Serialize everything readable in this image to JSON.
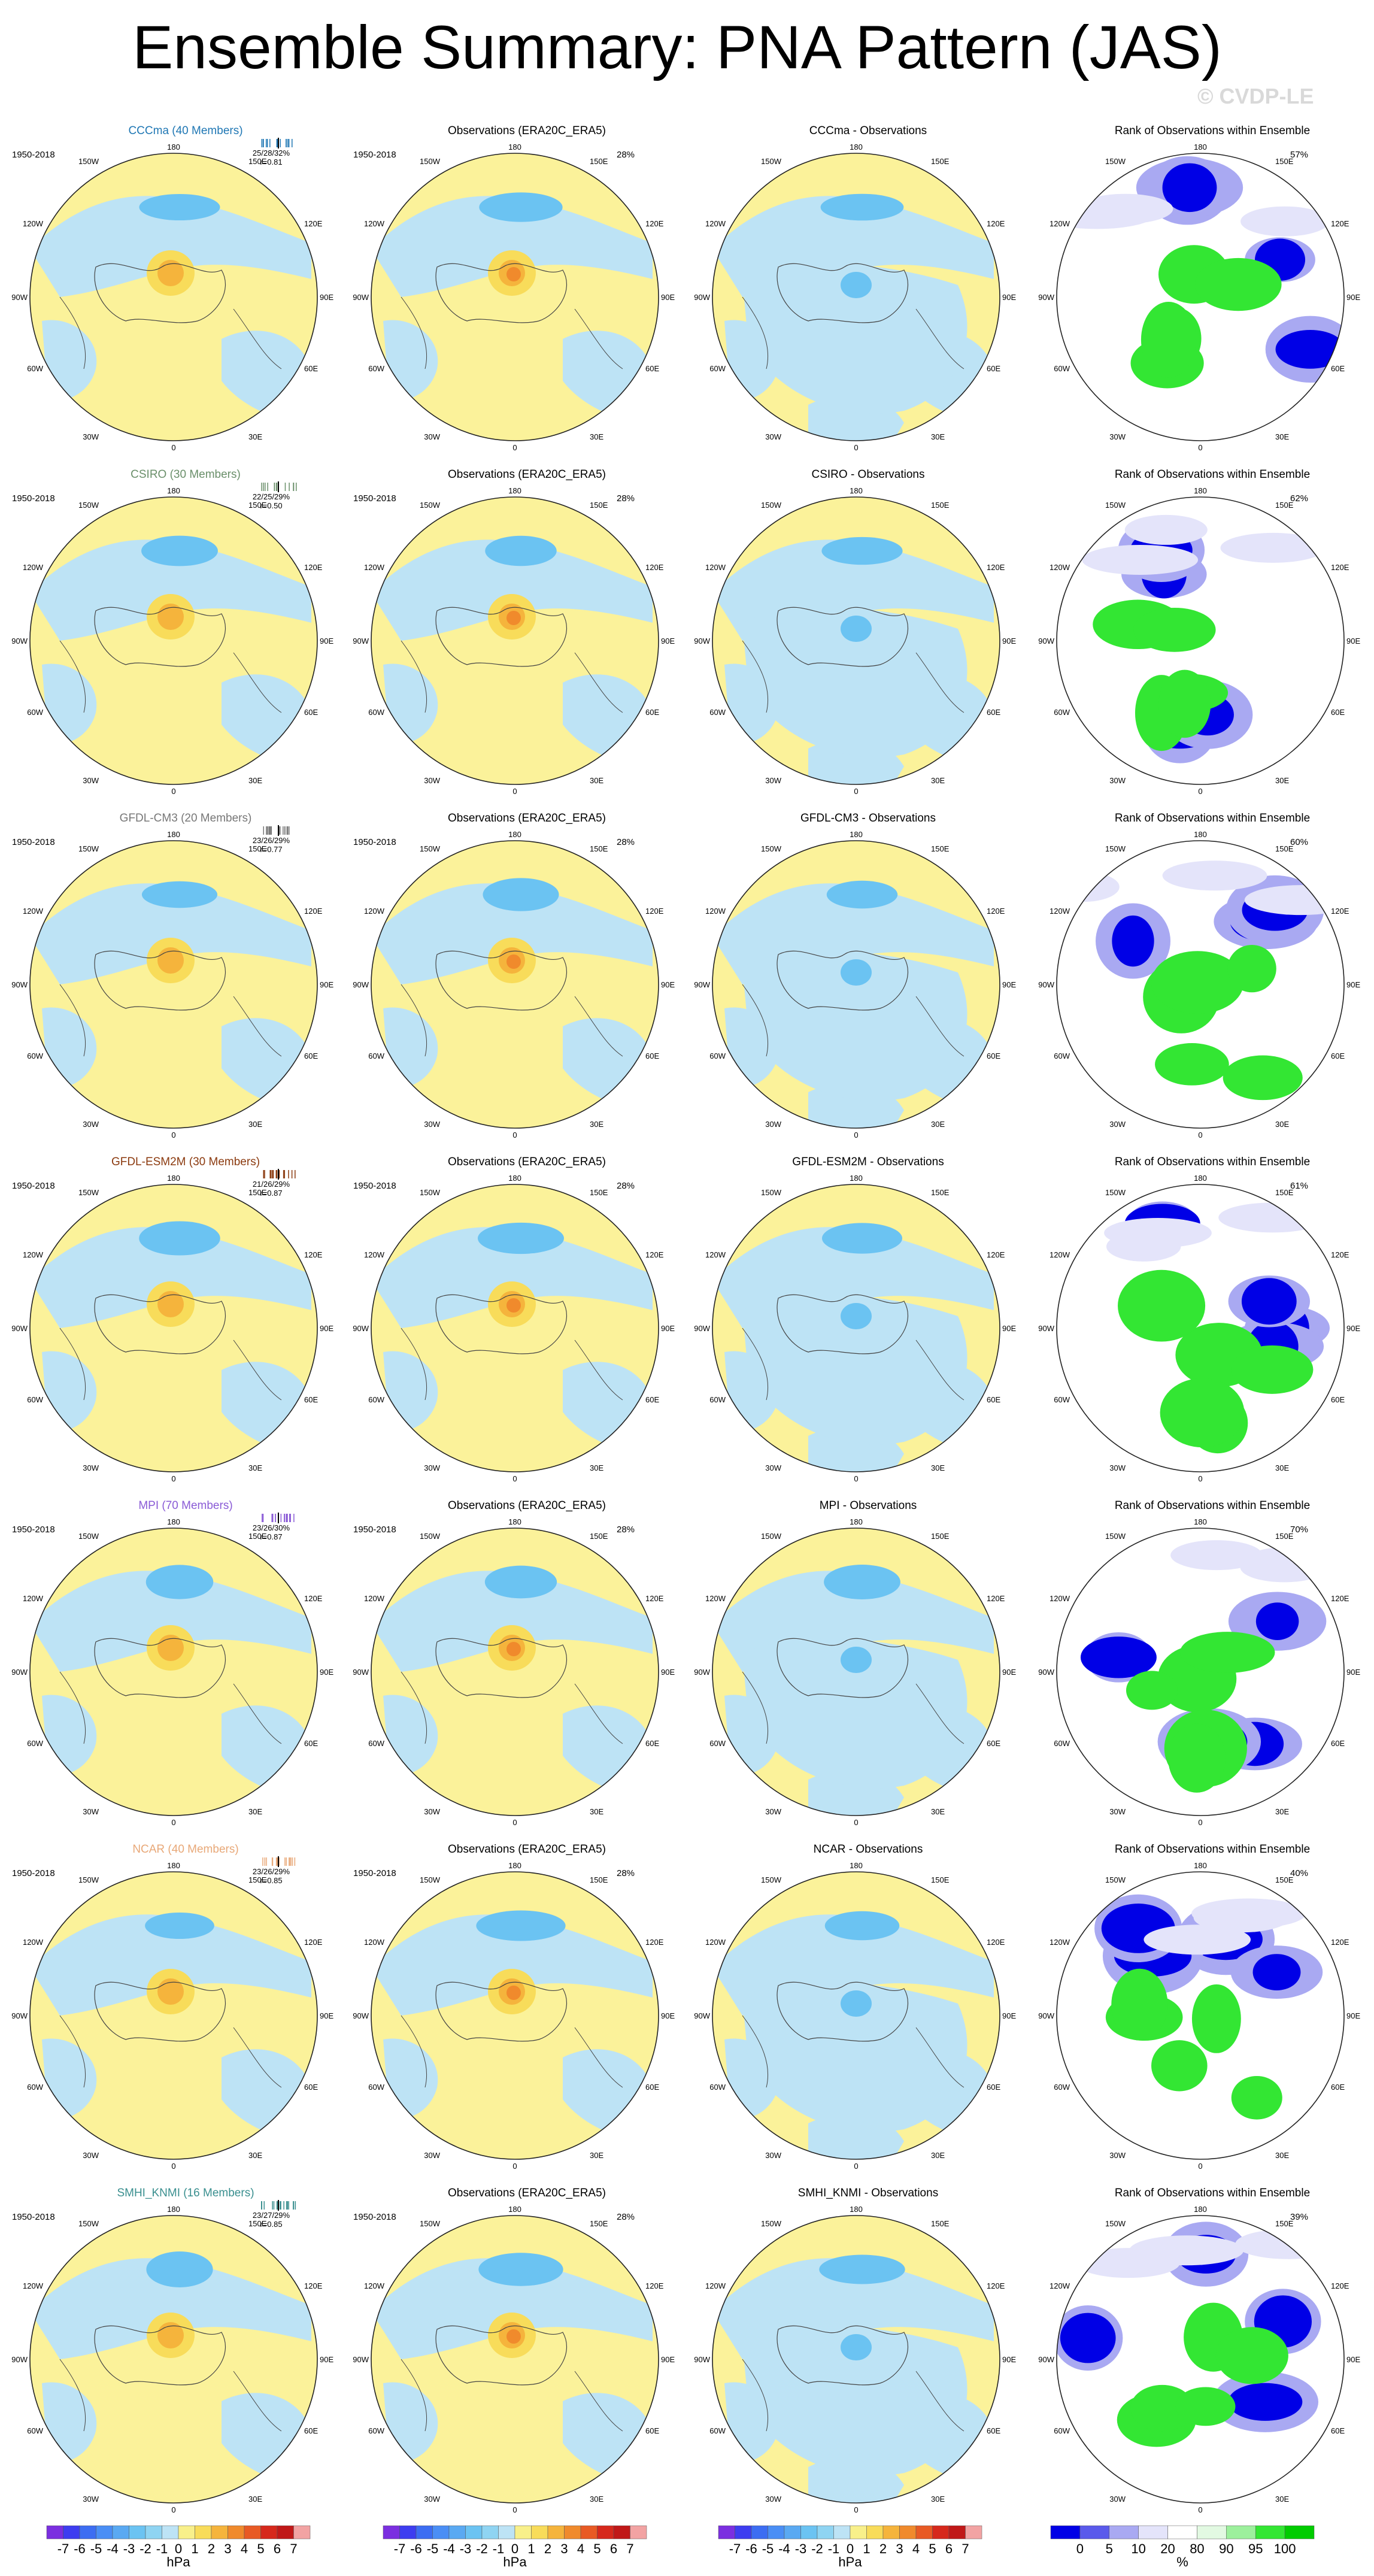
{
  "title": "Ensemble Summary: PNA Pattern (JAS)",
  "watermark": "© CVDP-LE",
  "period": "1950-2018",
  "obs_title": "Observations (ERA20C_ERA5)",
  "rank_title": "Rank of Observations within Ensemble",
  "obs_pct": "28%",
  "lon_labels": {
    "top": "180",
    "bottom": "0",
    "l1": "150W",
    "l2": "120W",
    "l3": "90W",
    "l4": "60W",
    "l5": "30W",
    "r1": "150E",
    "r2": "120E",
    "r3": "90E",
    "r4": "60E",
    "r5": "30E"
  },
  "rows": [
    {
      "model": "CCCma (40 Members)",
      "color": "#1f77b4",
      "ratio": "25/28/32%",
      "r": "r=0.81",
      "diff_title": "CCCma - Observations",
      "rank_pct": "57%"
    },
    {
      "model": "CSIRO (30 Members)",
      "color": "#6a8f6a",
      "ratio": "22/25/29%",
      "r": "r=0.50",
      "diff_title": "CSIRO - Observations",
      "rank_pct": "62%"
    },
    {
      "model": "GFDL-CM3 (20 Members)",
      "color": "#777777",
      "ratio": "23/26/29%",
      "r": "r=0.77",
      "diff_title": "GFDL-CM3 - Observations",
      "rank_pct": "60%"
    },
    {
      "model": "GFDL-ESM2M (30 Members)",
      "color": "#8b3a0f",
      "ratio": "21/26/29%",
      "r": "r=0.87",
      "diff_title": "GFDL-ESM2M - Observations",
      "rank_pct": "61%"
    },
    {
      "model": "MPI (70 Members)",
      "color": "#8a5bd6",
      "ratio": "23/26/30%",
      "r": "r=0.87",
      "diff_title": "MPI - Observations",
      "rank_pct": "70%"
    },
    {
      "model": "NCAR (40 Members)",
      "color": "#e8a878",
      "ratio": "23/26/29%",
      "r": "r=0.85",
      "diff_title": "NCAR - Observations",
      "rank_pct": "40%"
    },
    {
      "model": "SMHI_KNMI (16 Members)",
      "color": "#3a8f8f",
      "ratio": "23/27/29%",
      "r": "r=0.85",
      "diff_title": "SMHI_KNMI - Observations",
      "rank_pct": "39%"
    }
  ],
  "colorbar_hpa": {
    "ticks": [
      "-7",
      "-6",
      "-5",
      "-4",
      "-3",
      "-2",
      "-1",
      "0",
      "1",
      "2",
      "3",
      "4",
      "5",
      "6",
      "7"
    ],
    "unit": "hPa",
    "colors": [
      "#7b2fe0",
      "#3d3df0",
      "#3c6df2",
      "#4a8ef5",
      "#5aa9f2",
      "#6bc3f2",
      "#8fd4f2",
      "#bde3f5",
      "#f8f08a",
      "#f8dc5a",
      "#f5b43c",
      "#f08a2c",
      "#e85a24",
      "#d6281c",
      "#c01818",
      "#f2a3a3"
    ]
  },
  "colorbar_pct": {
    "ticks": [
      "0",
      "5",
      "10",
      "20",
      "80",
      "90",
      "95",
      "100"
    ],
    "unit": "%",
    "colors": [
      "#0000e6",
      "#5a5aeb",
      "#a9a9f2",
      "#e4e4fa",
      "#ffffff",
      "#e2f9e2",
      "#9cf09c",
      "#33e633",
      "#00cc00"
    ]
  }
}
